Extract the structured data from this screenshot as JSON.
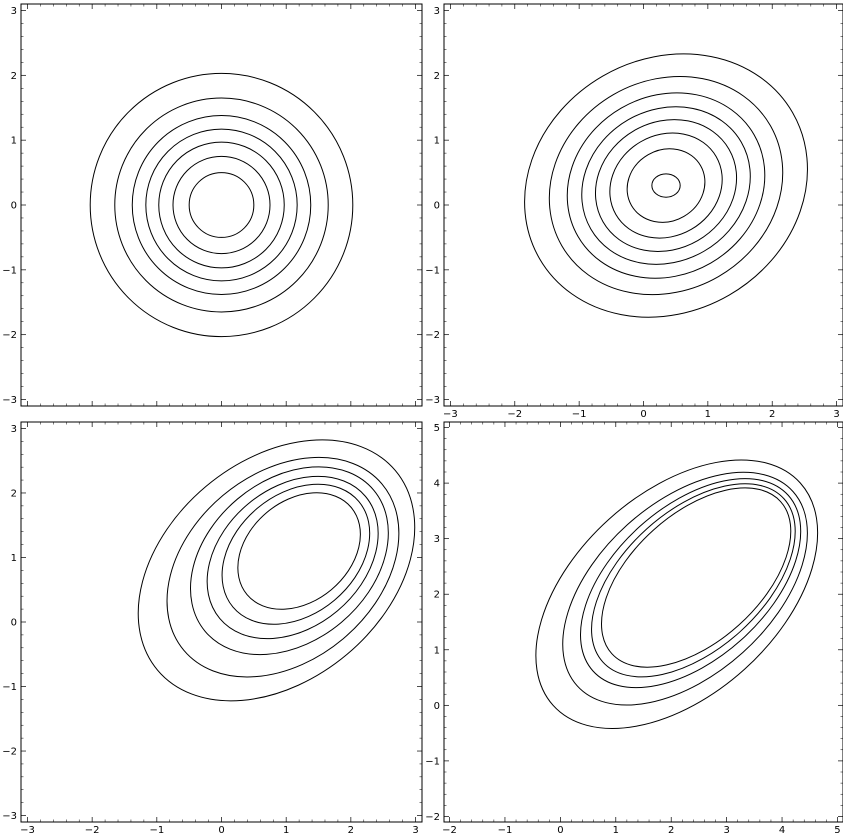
{
  "chart_data": [
    {
      "type": "contour",
      "title": "",
      "xlabel": "",
      "ylabel": "",
      "xlim": [
        -3.1,
        3.1
      ],
      "ylim": [
        -3.1,
        3.1
      ],
      "xticks": [
        -3,
        -2,
        -1,
        0,
        1,
        2,
        3
      ],
      "yticks": [
        -3,
        -2,
        -1,
        0,
        1,
        2,
        3
      ],
      "xtick_labels_shown": false,
      "grid": false,
      "legend": "none",
      "line_color": "#000000",
      "contours": [
        {
          "center": [
            0,
            0
          ],
          "rx": 0.5,
          "ry": 0.5,
          "rotation": 0
        },
        {
          "center": [
            0,
            0
          ],
          "rx": 0.75,
          "ry": 0.75,
          "rotation": 0
        },
        {
          "center": [
            0,
            0
          ],
          "rx": 0.97,
          "ry": 0.97,
          "rotation": 0
        },
        {
          "center": [
            0,
            0
          ],
          "rx": 1.17,
          "ry": 1.17,
          "rotation": 0
        },
        {
          "center": [
            0,
            0
          ],
          "rx": 1.38,
          "ry": 1.38,
          "rotation": 0
        },
        {
          "center": [
            0,
            0
          ],
          "rx": 1.65,
          "ry": 1.65,
          "rotation": 0
        },
        {
          "center": [
            0,
            0
          ],
          "rx": 2.03,
          "ry": 2.03,
          "rotation": 0
        }
      ]
    },
    {
      "type": "contour",
      "title": "",
      "xlabel": "",
      "ylabel": "",
      "xlim": [
        -3.1,
        3.1
      ],
      "ylim": [
        -3.1,
        3.1
      ],
      "xticks": [
        -3,
        -2,
        -1,
        0,
        1,
        2,
        3
      ],
      "yticks": [
        -3,
        -2,
        -1,
        0,
        1,
        2,
        3
      ],
      "xtick_labels_shown": true,
      "grid": false,
      "legend": "none",
      "line_color": "#000000",
      "contours": [
        {
          "center": [
            0.35,
            0.3
          ],
          "rx": 0.22,
          "ry": 0.18,
          "rotation": 0
        },
        {
          "center": [
            0.35,
            0.3
          ],
          "rx": 0.62,
          "ry": 0.55,
          "rotation": 30
        },
        {
          "center": [
            0.35,
            0.3
          ],
          "rx": 0.9,
          "ry": 0.78,
          "rotation": 30
        },
        {
          "center": [
            0.35,
            0.3
          ],
          "rx": 1.13,
          "ry": 0.98,
          "rotation": 30
        },
        {
          "center": [
            0.35,
            0.3
          ],
          "rx": 1.35,
          "ry": 1.17,
          "rotation": 30
        },
        {
          "center": [
            0.35,
            0.3
          ],
          "rx": 1.58,
          "ry": 1.38,
          "rotation": 30
        },
        {
          "center": [
            0.35,
            0.3
          ],
          "rx": 1.87,
          "ry": 1.62,
          "rotation": 30
        },
        {
          "center": [
            0.35,
            0.3
          ],
          "rx": 2.27,
          "ry": 1.95,
          "rotation": 30
        }
      ]
    },
    {
      "type": "contour",
      "title": "",
      "xlabel": "",
      "ylabel": "",
      "xlim": [
        -3.1,
        3.1
      ],
      "ylim": [
        -3.1,
        3.1
      ],
      "xticks": [
        -3,
        -2,
        -1,
        0,
        1,
        2,
        3
      ],
      "yticks": [
        -3,
        -2,
        -1,
        0,
        1,
        2,
        3
      ],
      "xtick_labels_shown": true,
      "grid": false,
      "legend": "none",
      "line_color": "#000000",
      "contours": [
        {
          "center": [
            1.2,
            1.1
          ],
          "rx": 1.05,
          "ry": 0.78,
          "rotation": 40
        },
        {
          "center": [
            1.15,
            1.05
          ],
          "rx": 1.27,
          "ry": 0.93,
          "rotation": 40
        },
        {
          "center": [
            1.1,
            1.0
          ],
          "rx": 1.47,
          "ry": 1.08,
          "rotation": 40
        },
        {
          "center": [
            1.05,
            0.95
          ],
          "rx": 1.7,
          "ry": 1.25,
          "rotation": 40
        },
        {
          "center": [
            0.95,
            0.85
          ],
          "rx": 2.0,
          "ry": 1.45,
          "rotation": 40
        },
        {
          "center": [
            0.85,
            0.8
          ],
          "rx": 2.4,
          "ry": 1.7,
          "rotation": 40
        }
      ]
    },
    {
      "type": "contour",
      "title": "",
      "xlabel": "",
      "ylabel": "",
      "xlim": [
        -2.1,
        5.1
      ],
      "ylim": [
        -2.1,
        5.1
      ],
      "xticks": [
        -2,
        -1,
        0,
        1,
        2,
        3,
        4,
        5
      ],
      "yticks": [
        -2,
        -1,
        0,
        1,
        2,
        3,
        4,
        5
      ],
      "xtick_labels_shown": true,
      "grid": false,
      "legend": "none",
      "line_color": "#000000",
      "contours": [
        {
          "center": [
            2.45,
            2.3
          ],
          "rx": 2.05,
          "ry": 1.15,
          "rotation": 42
        },
        {
          "center": [
            2.4,
            2.25
          ],
          "rx": 2.2,
          "ry": 1.25,
          "rotation": 42
        },
        {
          "center": [
            2.35,
            2.2
          ],
          "rx": 2.37,
          "ry": 1.37,
          "rotation": 42
        },
        {
          "center": [
            2.25,
            2.1
          ],
          "rx": 2.62,
          "ry": 1.55,
          "rotation": 42
        },
        {
          "center": [
            2.1,
            2.0
          ],
          "rx": 3.0,
          "ry": 1.82,
          "rotation": 42
        }
      ]
    }
  ]
}
